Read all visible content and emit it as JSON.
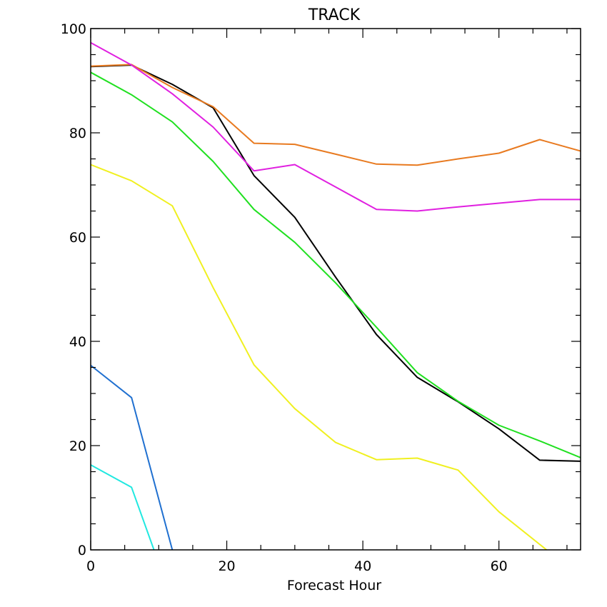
{
  "chart_data": {
    "type": "line",
    "title": "TRACK",
    "xlabel": "Forecast Hour",
    "ylabel": "",
    "xlim": [
      0,
      72
    ],
    "ylim": [
      0,
      100
    ],
    "xticks": [
      0,
      20,
      40,
      60
    ],
    "xtick_labels": [
      "0",
      "20",
      "40",
      "60"
    ],
    "yticks": [
      0,
      20,
      40,
      60,
      80,
      100
    ],
    "ytick_labels": [
      "0",
      "20",
      "40",
      "60",
      "80",
      "100"
    ],
    "grid": false,
    "legend": "none",
    "series": [
      {
        "color": "#000000",
        "x": [
          0,
          6,
          12,
          18,
          24,
          30,
          36,
          42,
          48,
          54,
          60,
          66,
          72
        ],
        "y": [
          92.7,
          93.0,
          89.3,
          84.8,
          71.8,
          63.8,
          52.3,
          41.3,
          33.1,
          28.4,
          23.2,
          17.2,
          17.0
        ]
      },
      {
        "color": "#e87a20",
        "x": [
          0,
          6,
          12,
          18,
          24,
          30,
          36,
          42,
          48,
          54,
          60,
          66,
          72
        ],
        "y": [
          92.8,
          93.1,
          88.7,
          85.0,
          78.0,
          77.8,
          75.9,
          74.0,
          73.8,
          75.0,
          76.1,
          78.7,
          76.5
        ]
      },
      {
        "color": "#e020e0",
        "x": [
          0,
          6,
          12,
          18,
          24,
          30,
          36,
          42,
          48,
          54,
          60,
          66,
          72
        ],
        "y": [
          97.3,
          93.0,
          87.5,
          81.1,
          72.7,
          73.9,
          69.6,
          65.3,
          65.0,
          65.8,
          66.5,
          67.2,
          67.2
        ]
      },
      {
        "color": "#20e020",
        "x": [
          0,
          6,
          12,
          18,
          24,
          30,
          36,
          42,
          48,
          54,
          60,
          66,
          72
        ],
        "y": [
          91.6,
          87.3,
          82.1,
          74.5,
          65.3,
          59.0,
          51.2,
          42.7,
          34.0,
          28.5,
          23.9,
          20.9,
          17.7
        ]
      },
      {
        "color": "#f0f020",
        "x": [
          0,
          6,
          12,
          18,
          24,
          30,
          36,
          42,
          48,
          54,
          60,
          67
        ],
        "y": [
          73.9,
          70.8,
          66.0,
          50.3,
          35.5,
          27.1,
          20.6,
          17.3,
          17.6,
          15.3,
          7.3,
          0
        ]
      },
      {
        "color": "#2070d0",
        "x": [
          0,
          6,
          12
        ],
        "y": [
          35.4,
          29.2,
          0
        ]
      },
      {
        "color": "#20e8e0",
        "x": [
          0,
          6,
          9.3
        ],
        "y": [
          16.3,
          12.0,
          0
        ]
      }
    ]
  }
}
